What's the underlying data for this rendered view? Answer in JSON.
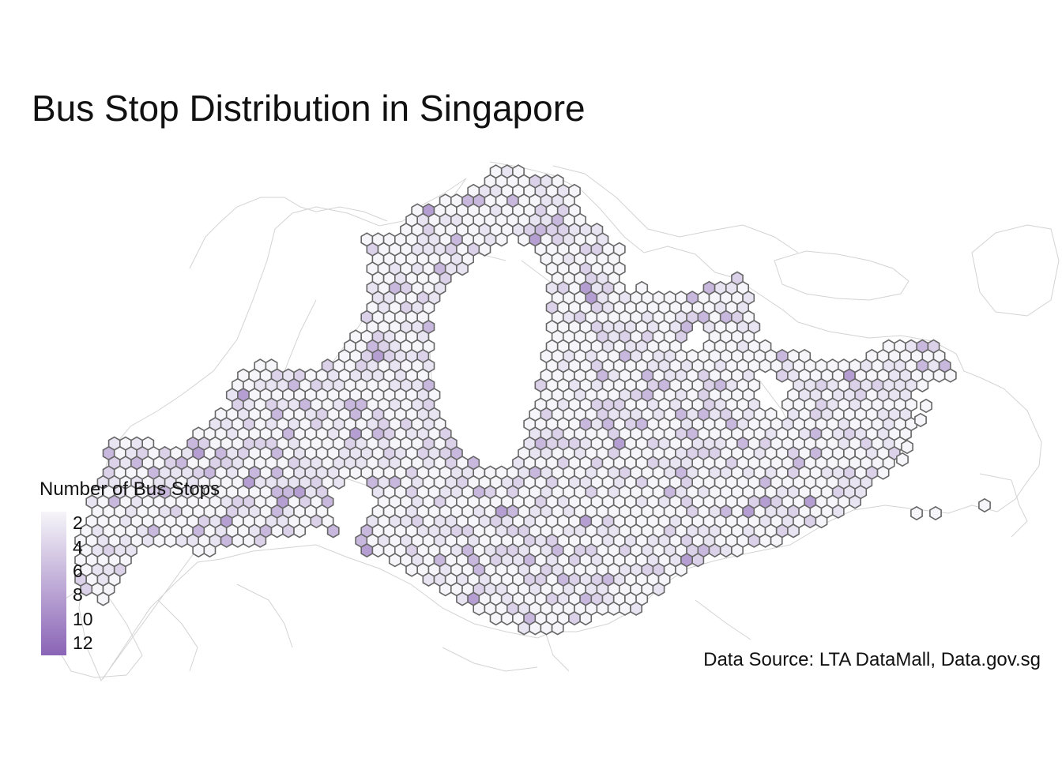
{
  "title": "Bus Stop Distribution in Singapore",
  "legend": {
    "title": "Number of Bus Stops",
    "ticks": [
      "2",
      "4",
      "6",
      "8",
      "10",
      "12"
    ],
    "min": 1,
    "max": 13,
    "color_low": "#f6f5f9",
    "color_high": "#8a64b6"
  },
  "caption": "Data Source: LTA DataMall, Data.gov.sg",
  "colors": {
    "hex_stroke": "#666666",
    "boundary": "#d3d3d3"
  }
}
